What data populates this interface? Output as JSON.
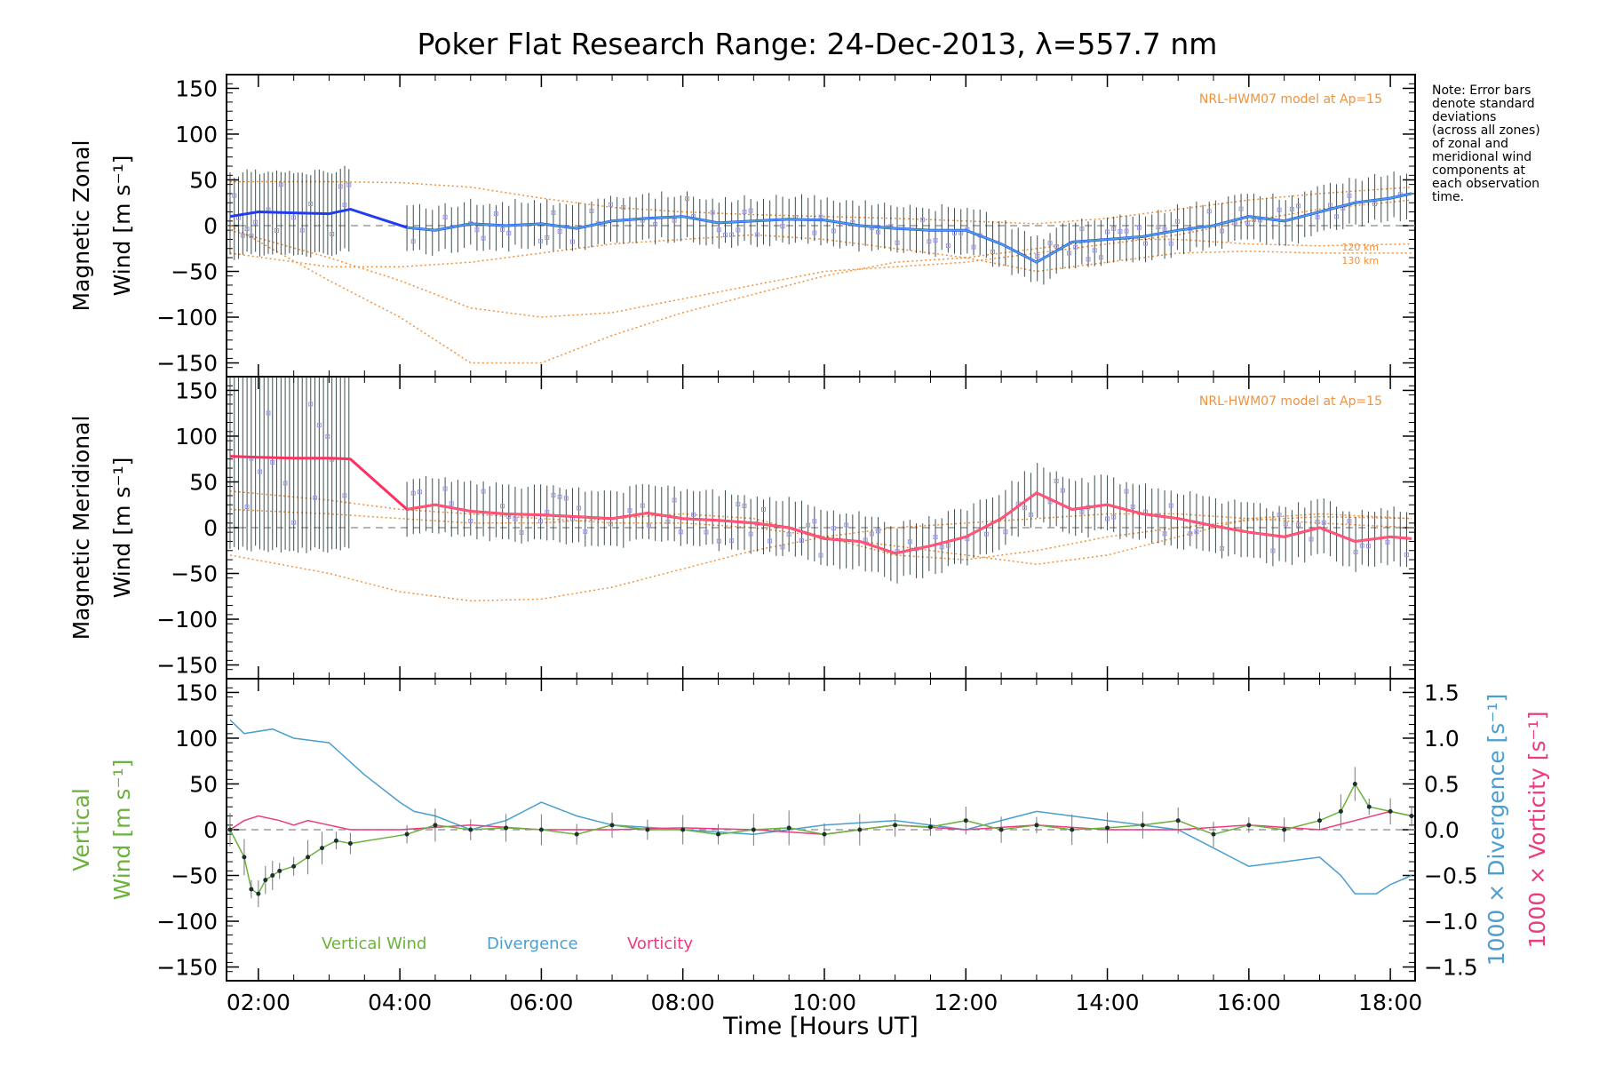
{
  "colors": {
    "zonal_line": "#1f3cf0",
    "zonal_mean": "#4a9fe0",
    "meridional_line": "#ff3060",
    "meridional_mean": "#ff5a7a",
    "vertical": "#6ab23c",
    "divergence": "#4a9fd0",
    "vorticity": "#ee3a80",
    "model": "#f0923c",
    "scatter": "#9a96e8",
    "errorbar": "#1c3030"
  },
  "chart_data": [
    {
      "id": "zonal",
      "type": "line",
      "title": "Poker Flat Research Range: 24-Dec-2013, λ=557.7 nm",
      "ylabel_line1": "Magnetic Zonal",
      "ylabel_line2": "Wind [m s⁻¹]",
      "xlim": [
        1.55,
        18.35
      ],
      "ylim": [
        -165,
        165
      ],
      "yticks": [
        -150,
        -100,
        -50,
        0,
        50,
        100,
        150
      ],
      "model_label": "NRL-HWM07 model at Ap=15",
      "model_km_labels": [
        "120 km",
        "130 km"
      ],
      "note": [
        "Note: Error bars",
        "denote standard",
        "deviations",
        "(across all zones)",
        "of zonal and",
        "meridional wind",
        "components at",
        "each observation",
        "time."
      ],
      "series": [
        {
          "name": "Magnetic Zonal Wind",
          "x": [
            1.6,
            2.0,
            2.5,
            3.0,
            3.3,
            4.1,
            4.5,
            5.0,
            5.5,
            6.0,
            6.5,
            7.0,
            7.5,
            8.0,
            8.5,
            9.0,
            9.5,
            10.0,
            10.5,
            11.0,
            11.5,
            12.0,
            12.5,
            13.0,
            13.5,
            14.0,
            14.5,
            15.0,
            15.5,
            16.0,
            16.5,
            17.0,
            17.5,
            18.0,
            18.3
          ],
          "y": [
            10,
            15,
            14,
            13,
            18,
            -2,
            -5,
            2,
            0,
            2,
            -3,
            5,
            8,
            10,
            3,
            5,
            7,
            6,
            0,
            -3,
            -5,
            -5,
            -20,
            -40,
            -18,
            -15,
            -12,
            -5,
            0,
            10,
            5,
            15,
            25,
            30,
            35
          ]
        },
        {
          "name": "Model 100 km",
          "x": [
            1.6,
            3,
            4,
            5,
            6,
            7,
            8,
            9,
            10,
            11,
            12,
            13,
            14,
            15,
            16,
            17,
            18.3
          ],
          "y": [
            48,
            48,
            47,
            42,
            30,
            20,
            15,
            12,
            10,
            8,
            5,
            2,
            8,
            18,
            28,
            35,
            42
          ]
        },
        {
          "name": "Model 110 km",
          "x": [
            1.6,
            3,
            4,
            5,
            6,
            7,
            8,
            9,
            10,
            11,
            12,
            13,
            14,
            15,
            16,
            17,
            18.3
          ],
          "y": [
            -5,
            -35,
            -60,
            -90,
            -100,
            -95,
            -80,
            -65,
            -50,
            -45,
            -40,
            -30,
            -20,
            -10,
            5,
            18,
            28
          ]
        },
        {
          "name": "Model 120 km",
          "x": [
            1.6,
            3,
            4,
            5,
            6,
            7,
            8,
            9,
            10,
            11,
            12,
            13,
            14,
            15,
            16,
            17,
            18.3
          ],
          "y": [
            0,
            -60,
            -100,
            -150,
            -150,
            -120,
            -95,
            -75,
            -55,
            -40,
            -35,
            -25,
            -15,
            -15,
            -20,
            -22,
            -20
          ]
        },
        {
          "name": "Model 130 km",
          "x": [
            1.6,
            3,
            4,
            5,
            6,
            7,
            8,
            9,
            10,
            11,
            12,
            13,
            14,
            15,
            16,
            17,
            18.3
          ],
          "y": [
            -30,
            -45,
            -45,
            -40,
            -30,
            -20,
            -15,
            -10,
            -15,
            -25,
            -35,
            -50,
            -40,
            -30,
            -28,
            -30,
            -30
          ]
        }
      ]
    },
    {
      "id": "meridional",
      "type": "line",
      "ylabel_line1": "Magnetic Meridional",
      "ylabel_line2": "Wind [m s⁻¹]",
      "xlim": [
        1.55,
        18.35
      ],
      "ylim": [
        -165,
        165
      ],
      "yticks": [
        -150,
        -100,
        -50,
        0,
        50,
        100,
        150
      ],
      "model_label": "NRL-HWM07 model at Ap=15",
      "series": [
        {
          "name": "Magnetic Meridional Wind",
          "x": [
            1.6,
            2.0,
            2.5,
            3.0,
            3.3,
            4.1,
            4.5,
            5.0,
            5.5,
            6.0,
            6.5,
            7.0,
            7.5,
            8.0,
            8.5,
            9.0,
            9.5,
            10.0,
            10.5,
            11.0,
            11.5,
            12.0,
            12.5,
            13.0,
            13.5,
            14.0,
            14.5,
            15.0,
            15.5,
            16.0,
            16.5,
            17.0,
            17.5,
            18.0,
            18.3
          ],
          "y": [
            78,
            77,
            76,
            76,
            75,
            20,
            25,
            18,
            15,
            14,
            12,
            10,
            16,
            10,
            8,
            5,
            0,
            -12,
            -15,
            -28,
            -20,
            -10,
            10,
            38,
            20,
            25,
            15,
            10,
            2,
            -5,
            -10,
            0,
            -15,
            -10,
            -12
          ]
        },
        {
          "name": "Model 100 km",
          "x": [
            1.6,
            3,
            4,
            5,
            6,
            7,
            8,
            9,
            10,
            11,
            12,
            13,
            14,
            15,
            16,
            17,
            18.3
          ],
          "y": [
            -30,
            -50,
            -70,
            -80,
            -78,
            -65,
            -45,
            -25,
            -10,
            0,
            5,
            10,
            15,
            15,
            10,
            5,
            0
          ]
        },
        {
          "name": "Model 110 km",
          "x": [
            1.6,
            3,
            4,
            5,
            6,
            7,
            8,
            9,
            10,
            11,
            12,
            13,
            14,
            15,
            16,
            17,
            18.3
          ],
          "y": [
            20,
            15,
            10,
            5,
            5,
            10,
            15,
            10,
            -10,
            -30,
            -35,
            -25,
            -10,
            0,
            8,
            12,
            10
          ]
        },
        {
          "name": "Model 120 km",
          "x": [
            1.6,
            3,
            4,
            5,
            6,
            7,
            8,
            9,
            10,
            11,
            12,
            13,
            14,
            15,
            16,
            17,
            18.3
          ],
          "y": [
            40,
            30,
            20,
            15,
            10,
            5,
            5,
            0,
            -10,
            -20,
            -30,
            -40,
            -30,
            -10,
            10,
            15,
            10
          ]
        }
      ]
    },
    {
      "id": "vertical",
      "type": "line",
      "ylabel_line1": "Vertical",
      "ylabel_line2": "Wind [m s⁻¹]",
      "ylabel_right1": "1000 × Divergence [s⁻¹]",
      "ylabel_right2": "1000 × Vorticity [s⁻¹]",
      "xlabel": "Time [Hours UT]",
      "xlim": [
        1.55,
        18.35
      ],
      "ylim": [
        -165,
        165
      ],
      "yticks": [
        -150,
        -100,
        -50,
        0,
        50,
        100,
        150
      ],
      "y2lim": [
        -1.65,
        1.65
      ],
      "y2ticks": [
        -1.5,
        -1.0,
        -0.5,
        0.0,
        0.5,
        1.0,
        1.5
      ],
      "y2ticklabels": [
        "−1.5",
        "−1.0",
        "−0.5",
        "0.0",
        "0.5",
        "1.0",
        "1.5"
      ],
      "xticks": [
        2,
        4,
        6,
        8,
        10,
        12,
        14,
        16,
        18
      ],
      "xticklabels": [
        "02:00",
        "04:00",
        "06:00",
        "08:00",
        "10:00",
        "12:00",
        "14:00",
        "16:00",
        "18:00"
      ],
      "legend": [
        "Vertical Wind",
        "Divergence",
        "Vorticity"
      ],
      "series": [
        {
          "name": "Vertical Wind",
          "x": [
            1.6,
            1.8,
            1.9,
            2.0,
            2.1,
            2.2,
            2.3,
            2.5,
            2.7,
            2.9,
            3.1,
            3.3,
            4.1,
            4.5,
            5.0,
            5.5,
            6.0,
            6.5,
            7.0,
            7.5,
            8.0,
            8.5,
            9.0,
            9.5,
            10.0,
            10.5,
            11.0,
            11.5,
            12.0,
            12.5,
            13.0,
            13.5,
            14.0,
            14.5,
            15.0,
            15.5,
            16.0,
            16.5,
            17.0,
            17.3,
            17.5,
            17.7,
            18.0,
            18.3
          ],
          "y": [
            0,
            -30,
            -65,
            -70,
            -55,
            -50,
            -45,
            -40,
            -30,
            -20,
            -12,
            -15,
            -5,
            5,
            0,
            2,
            0,
            -5,
            5,
            0,
            0,
            -5,
            0,
            2,
            -5,
            0,
            5,
            3,
            10,
            0,
            5,
            0,
            2,
            5,
            10,
            -5,
            5,
            0,
            10,
            20,
            50,
            25,
            20,
            15
          ]
        },
        {
          "name": "Divergence",
          "x": [
            1.6,
            1.8,
            2.2,
            2.5,
            3.0,
            3.5,
            4.0,
            4.2,
            4.5,
            5.0,
            5.5,
            6.0,
            6.5,
            7.0,
            8.0,
            9.0,
            10.0,
            11.0,
            12.0,
            13.0,
            14.0,
            15.0,
            15.5,
            16.0,
            16.5,
            17.0,
            17.3,
            17.5,
            17.8,
            18.0,
            18.3
          ],
          "y": [
            1.2,
            1.05,
            1.1,
            1.0,
            0.95,
            0.6,
            0.3,
            0.2,
            0.15,
            0.0,
            0.1,
            0.3,
            0.15,
            0.05,
            0.0,
            -0.05,
            0.05,
            0.1,
            0.0,
            0.2,
            0.1,
            0.0,
            -0.2,
            -0.4,
            -0.35,
            -0.3,
            -0.5,
            -0.7,
            -0.7,
            -0.6,
            -0.5
          ]
        },
        {
          "name": "Vorticity",
          "x": [
            1.6,
            1.8,
            2.0,
            2.3,
            2.5,
            2.7,
            3.0,
            3.3,
            4.0,
            5.0,
            6.0,
            7.0,
            8.0,
            9.0,
            10.0,
            11.0,
            12.0,
            13.0,
            14.0,
            15.0,
            16.0,
            17.0,
            17.5,
            18.0,
            18.3
          ],
          "y": [
            0.0,
            0.1,
            0.15,
            0.1,
            0.05,
            0.1,
            0.05,
            0.0,
            0.0,
            0.05,
            0.0,
            0.0,
            0.02,
            0.0,
            -0.05,
            0.05,
            0.0,
            0.05,
            0.0,
            0.0,
            0.05,
            0.0,
            0.1,
            0.2,
            0.15
          ]
        }
      ]
    }
  ]
}
